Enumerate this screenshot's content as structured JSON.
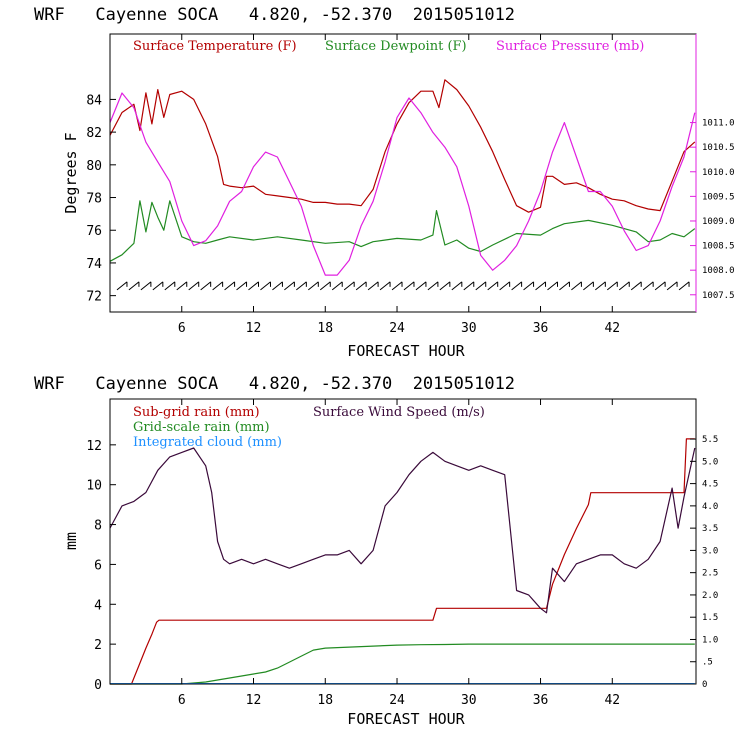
{
  "chart_data": [
    {
      "type": "line",
      "title": "WRF   Cayenne SOCA   4.820, -52.370  2015051012",
      "xlabel": "FORECAST HOUR",
      "ylabel": "Degrees F",
      "xlim": [
        0,
        49
      ],
      "xticks": [
        6,
        12,
        18,
        24,
        30,
        36,
        42
      ],
      "ylim": [
        71,
        88
      ],
      "yticks": [
        72,
        74,
        76,
        78,
        80,
        82,
        84
      ],
      "y2lim": [
        1007.15,
        1012.8
      ],
      "y2ticks": [
        1007.5,
        1008.0,
        1008.5,
        1009.0,
        1009.5,
        1010.0,
        1010.5,
        1011.0
      ],
      "y2tick_labels": [
        "1007.5",
        "1008.0",
        "1008.5",
        "1009.0",
        "1009.5",
        "1010.0",
        "1010.5",
        "1011.0"
      ],
      "wind_barb_level": 72.6,
      "series": [
        {
          "name": "Surface Temperature (F)",
          "color": "#b30000",
          "axis": "left",
          "x": [
            0,
            1,
            2,
            2.5,
            3,
            3.5,
            4,
            4.5,
            5,
            6,
            7,
            8,
            9,
            9.5,
            10,
            11,
            12,
            13,
            14,
            15,
            16,
            17,
            18,
            19,
            20,
            21,
            22,
            23,
            24,
            25,
            26,
            27,
            27.5,
            28,
            29,
            30,
            31,
            32,
            33,
            34,
            35,
            36,
            36.5,
            37,
            38,
            39,
            40,
            41,
            42,
            43,
            44,
            45,
            46,
            47,
            48,
            48.9
          ],
          "y": [
            81.8,
            83.2,
            83.7,
            82.1,
            84.4,
            82.5,
            84.6,
            82.9,
            84.3,
            84.5,
            84.0,
            82.5,
            80.5,
            78.8,
            78.7,
            78.6,
            78.7,
            78.2,
            78.1,
            78.0,
            77.9,
            77.7,
            77.7,
            77.6,
            77.6,
            77.5,
            78.5,
            80.8,
            82.5,
            83.8,
            84.5,
            84.5,
            83.5,
            85.2,
            84.6,
            83.6,
            82.3,
            80.8,
            79.1,
            77.5,
            77.1,
            77.4,
            79.3,
            79.3,
            78.8,
            78.9,
            78.6,
            78.2,
            77.9,
            77.8,
            77.5,
            77.3,
            77.2,
            79.0,
            80.8,
            81.4
          ]
        },
        {
          "name": "Surface Dewpoint (F)",
          "color": "#228b22",
          "axis": "left",
          "x": [
            0,
            1,
            2,
            2.5,
            3,
            3.5,
            4,
            4.5,
            5,
            6,
            7,
            8,
            9,
            10,
            12,
            14,
            16,
            18,
            20,
            21,
            22,
            24,
            26,
            27,
            27.3,
            28,
            29,
            30,
            31,
            32,
            34,
            36,
            37,
            38,
            40,
            42,
            44,
            45,
            46,
            47,
            48,
            48.9
          ],
          "y": [
            74.1,
            74.5,
            75.2,
            77.8,
            75.9,
            77.7,
            76.8,
            76.0,
            77.8,
            75.6,
            75.3,
            75.2,
            75.4,
            75.6,
            75.4,
            75.6,
            75.4,
            75.2,
            75.3,
            75.0,
            75.3,
            75.5,
            75.4,
            75.7,
            77.2,
            75.1,
            75.4,
            74.9,
            74.7,
            75.1,
            75.8,
            75.7,
            76.1,
            76.4,
            76.6,
            76.3,
            75.9,
            75.3,
            75.4,
            75.8,
            75.6,
            76.1
          ]
        },
        {
          "name": "Surface Pressure (mb)",
          "color": "#e020e0",
          "axis": "right",
          "x": [
            0,
            1,
            2,
            3,
            4,
            5,
            6,
            7,
            8,
            9,
            10,
            11,
            12,
            13,
            14,
            15,
            16,
            17,
            18,
            19,
            20,
            21,
            22,
            23,
            24,
            25,
            26,
            27,
            28,
            29,
            30,
            31,
            32,
            33,
            34,
            35,
            36,
            37,
            38,
            39,
            40,
            41,
            42,
            43,
            44,
            45,
            46,
            47,
            48,
            48.9
          ],
          "y": [
            1011.0,
            1011.6,
            1011.3,
            1010.6,
            1010.2,
            1009.8,
            1009.0,
            1008.5,
            1008.6,
            1008.9,
            1009.4,
            1009.6,
            1010.1,
            1010.4,
            1010.3,
            1009.8,
            1009.3,
            1008.5,
            1007.9,
            1007.9,
            1008.2,
            1008.9,
            1009.4,
            1010.2,
            1011.1,
            1011.5,
            1011.2,
            1010.8,
            1010.5,
            1010.1,
            1009.3,
            1008.3,
            1008.0,
            1008.2,
            1008.5,
            1009.0,
            1009.6,
            1010.4,
            1011.0,
            1010.3,
            1009.6,
            1009.6,
            1009.3,
            1008.8,
            1008.4,
            1008.5,
            1009.0,
            1009.7,
            1010.3,
            1011.2
          ]
        }
      ],
      "legend": [
        "Surface Temperature (F)",
        "Surface Dewpoint (F)",
        "Surface Pressure (mb)"
      ]
    },
    {
      "type": "line",
      "title": "WRF   Cayenne SOCA   4.820, -52.370  2015051012",
      "xlabel": "FORECAST HOUR",
      "ylabel": "mm",
      "xlim": [
        0,
        49
      ],
      "xticks": [
        6,
        12,
        18,
        24,
        30,
        36,
        42
      ],
      "ylim": [
        0,
        14.3
      ],
      "yticks": [
        0,
        2,
        4,
        6,
        8,
        10,
        12
      ],
      "y2lim": [
        0,
        6.4
      ],
      "y2ticks": [
        0,
        0.5,
        1.0,
        1.5,
        2.0,
        2.5,
        3.0,
        3.5,
        4.0,
        4.5,
        5.0,
        5.5
      ],
      "y2tick_labels": [
        "0",
        ".5",
        "1.0",
        "1.5",
        "2.0",
        "2.5",
        "3.0",
        "3.5",
        "4.0",
        "4.5",
        "5.0",
        "5.5"
      ],
      "series": [
        {
          "name": "Sub-grid rain (mm)",
          "color": "#b30000",
          "axis": "left",
          "x": [
            0,
            1.8,
            2.4,
            3,
            3.5,
            3.9,
            4.1,
            27,
            27.3,
            36.5,
            37,
            38,
            39,
            40,
            40.2,
            48,
            48.2,
            48.9
          ],
          "y": [
            0,
            0,
            0.9,
            1.8,
            2.5,
            3.1,
            3.2,
            3.2,
            3.8,
            3.8,
            5.0,
            6.5,
            7.8,
            9.0,
            9.6,
            9.6,
            12.3,
            12.3
          ]
        },
        {
          "name": "Grid-scale rain (mm)",
          "color": "#228b22",
          "axis": "left",
          "x": [
            0,
            6,
            8,
            9,
            10,
            11,
            12,
            13,
            14,
            15,
            16,
            17,
            18,
            20,
            22,
            24,
            26,
            28,
            30,
            36,
            48.9
          ],
          "y": [
            0,
            0,
            0.1,
            0.2,
            0.3,
            0.4,
            0.5,
            0.6,
            0.8,
            1.1,
            1.4,
            1.7,
            1.8,
            1.85,
            1.9,
            1.95,
            1.97,
            1.98,
            2.0,
            2.0,
            2.0
          ]
        },
        {
          "name": "Integrated cloud (mm)",
          "color": "#1e90ff",
          "axis": "left",
          "x": [
            0,
            48.9
          ],
          "y": [
            0.02,
            0.02
          ]
        },
        {
          "name": "Surface Wind Speed (m/s)",
          "color": "#3a0a3a",
          "axis": "right",
          "x": [
            0,
            1,
            2,
            3,
            4,
            5,
            6,
            7,
            8,
            8.5,
            9,
            9.5,
            10,
            11,
            12,
            13,
            14,
            15,
            16,
            17,
            18,
            19,
            20,
            21,
            22,
            23,
            24,
            25,
            26,
            27,
            28,
            29,
            30,
            31,
            32,
            33,
            34,
            35,
            36,
            36.5,
            37,
            38,
            39,
            40,
            41,
            42,
            43,
            44,
            45,
            46,
            47,
            47.5,
            48,
            48.9
          ],
          "y": [
            3.5,
            4.0,
            4.1,
            4.3,
            4.8,
            5.1,
            5.2,
            5.3,
            4.9,
            4.3,
            3.2,
            2.8,
            2.7,
            2.8,
            2.7,
            2.8,
            2.7,
            2.6,
            2.7,
            2.8,
            2.9,
            2.9,
            3.0,
            2.7,
            3.0,
            4.0,
            4.3,
            4.7,
            5.0,
            5.2,
            5.0,
            4.9,
            4.8,
            4.9,
            4.8,
            4.7,
            2.1,
            2.0,
            1.7,
            1.6,
            2.6,
            2.3,
            2.7,
            2.8,
            2.9,
            2.9,
            2.7,
            2.6,
            2.8,
            3.2,
            4.4,
            3.5,
            4.2,
            5.3
          ]
        }
      ],
      "legend": [
        "Sub-grid rain (mm)",
        "Surface Wind Speed (m/s)",
        "Grid-scale rain (mm)",
        "Integrated cloud (mm)"
      ]
    }
  ]
}
